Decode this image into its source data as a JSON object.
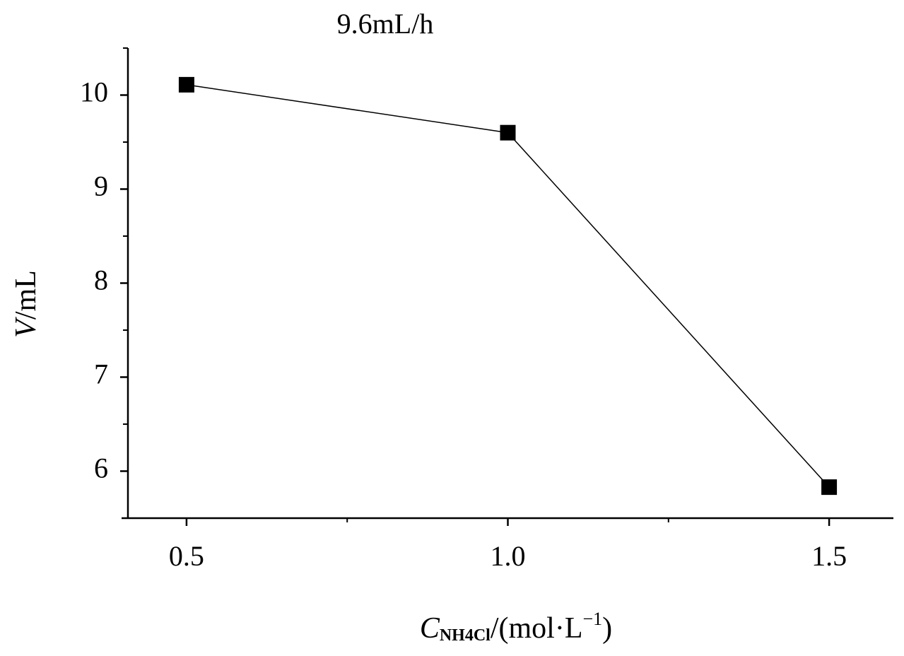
{
  "chart_data": {
    "type": "line",
    "title": "9.6mL/h",
    "x_label": {
      "symbol": "C",
      "subscript": "NH4Cl",
      "unit": "/(mol·L",
      "superscript": "−1",
      "close": ")"
    },
    "y_label": {
      "symbol": "V",
      "unit": "/mL"
    },
    "x": [
      0.5,
      1.0,
      1.5
    ],
    "series": [
      {
        "color": "#000000",
        "values": [
          10.11,
          9.6,
          5.83
        ]
      }
    ],
    "xlim": [
      0.4,
      1.6
    ],
    "xticks": [
      0.5,
      {
        "value": 1.0,
        "label": "1.0"
      },
      1.5
    ],
    "xminorticks": [
      0.75,
      1.25
    ],
    "ylim": [
      5.5,
      10.5
    ],
    "yticks": [
      6,
      7,
      8,
      9,
      10
    ],
    "yminorticks": [
      6.5,
      7.5,
      8.5,
      9.5,
      10.5
    ],
    "marker": "square"
  }
}
